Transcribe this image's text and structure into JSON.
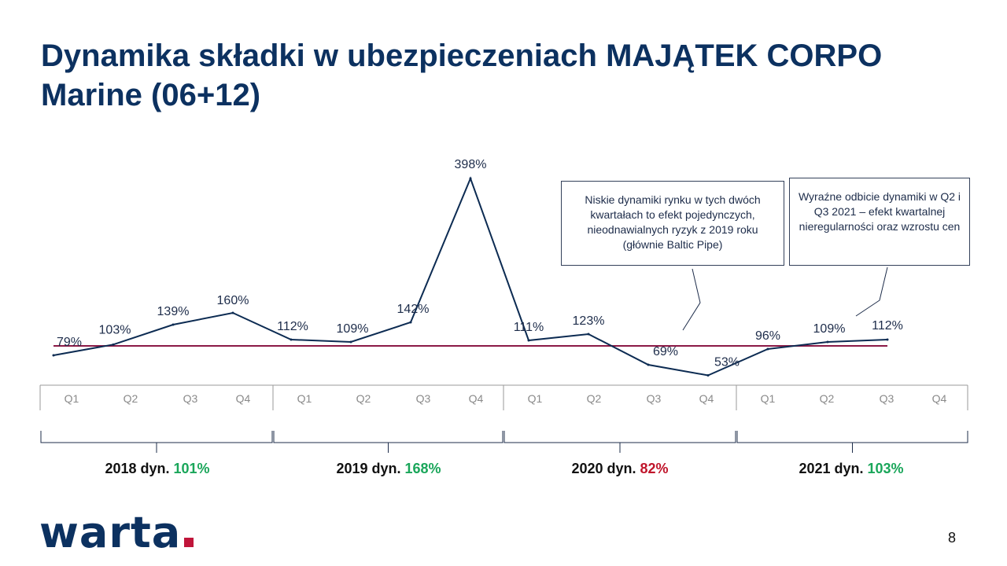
{
  "slide": {
    "title": "Dynamika składki w ubezpieczeniach MAJĄTEK CORPO Marine (06+12)",
    "page_number": "8",
    "logo_text": "warta"
  },
  "chart_data": {
    "type": "line",
    "categories": [
      "Q1",
      "Q2",
      "Q3",
      "Q4",
      "Q1",
      "Q2",
      "Q3",
      "Q4",
      "Q1",
      "Q2",
      "Q3",
      "Q4",
      "Q1",
      "Q2",
      "Q3",
      "Q4"
    ],
    "groups": [
      "2018",
      "2019",
      "2020",
      "2021"
    ],
    "series": [
      {
        "values": [
          79,
          103,
          139,
          160,
          112,
          109,
          142,
          398,
          111,
          123,
          69,
          53,
          96,
          109,
          112,
          null
        ],
        "labels": [
          "79%",
          "103%",
          "139%",
          "160%",
          "112%",
          "109%",
          "142%",
          "398%",
          "111%",
          "123%",
          "69%",
          "53%",
          "96%",
          "109%",
          "112%",
          ""
        ]
      }
    ],
    "reference_line": 100,
    "year_summaries": [
      {
        "label": "2018 dyn.",
        "value": "101%",
        "trend": "pos"
      },
      {
        "label": "2019 dyn.",
        "value": "168%",
        "trend": "pos"
      },
      {
        "label": "2020 dyn.",
        "value": "82%",
        "trend": "neg"
      },
      {
        "label": "2021 dyn.",
        "value": "103%",
        "trend": "pos"
      }
    ],
    "annotations": [
      "Niskie dynamiki rynku w tych dwóch kwartałach to efekt pojedynczych, nieodnawialnych ryzyk z 2019 roku (głównie Baltic Pipe)",
      "Wyraźne odbicie dynamiki w Q2 i Q3 2021 – efekt kwartalnej nieregularności oraz wzrostu cen"
    ],
    "colors": {
      "line": "#0c2b52",
      "reference": "#8b1a46",
      "positive": "#1aa65a",
      "negative": "#c0152b"
    }
  }
}
